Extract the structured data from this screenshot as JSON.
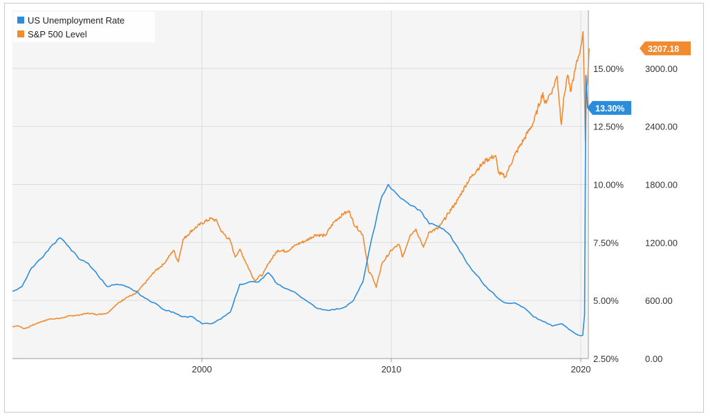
{
  "chart_data": {
    "type": "line",
    "x_range": [
      1990.0,
      2020.4
    ],
    "x_ticks": [
      "2000",
      "2010",
      "2020"
    ],
    "grid": true,
    "legend_position": "top-left",
    "left_axis": {
      "ticks": [
        "2.50%",
        "5.00%",
        "7.50%",
        "10.00%",
        "12.50%",
        "15.00%"
      ],
      "range": [
        2.5,
        17.5
      ]
    },
    "right_axis": {
      "ticks": [
        "0.00",
        "600.00",
        "1200.00",
        "1800.00",
        "2400.00",
        "3000.00"
      ],
      "range": [
        0,
        3600
      ]
    },
    "series": [
      {
        "name": "US Unemployment Rate",
        "color": "#2b8cdc",
        "axis": "left",
        "last_value_label": "13.30%",
        "last_value": 13.3,
        "points": [
          [
            1990.0,
            5.4
          ],
          [
            1990.5,
            5.6
          ],
          [
            1991.0,
            6.4
          ],
          [
            1991.5,
            6.8
          ],
          [
            1992.0,
            7.3
          ],
          [
            1992.5,
            7.7
          ],
          [
            1993.0,
            7.3
          ],
          [
            1993.5,
            6.8
          ],
          [
            1994.0,
            6.6
          ],
          [
            1994.5,
            6.1
          ],
          [
            1995.0,
            5.6
          ],
          [
            1995.5,
            5.7
          ],
          [
            1996.0,
            5.6
          ],
          [
            1996.5,
            5.4
          ],
          [
            1997.0,
            5.1
          ],
          [
            1997.5,
            4.9
          ],
          [
            1998.0,
            4.6
          ],
          [
            1998.5,
            4.5
          ],
          [
            1999.0,
            4.3
          ],
          [
            1999.5,
            4.3
          ],
          [
            2000.0,
            4.0
          ],
          [
            2000.5,
            4.0
          ],
          [
            2001.0,
            4.2
          ],
          [
            2001.5,
            4.5
          ],
          [
            2002.0,
            5.7
          ],
          [
            2002.5,
            5.8
          ],
          [
            2003.0,
            5.8
          ],
          [
            2003.5,
            6.2
          ],
          [
            2004.0,
            5.7
          ],
          [
            2004.5,
            5.5
          ],
          [
            2005.0,
            5.3
          ],
          [
            2005.5,
            5.0
          ],
          [
            2006.0,
            4.7
          ],
          [
            2006.5,
            4.6
          ],
          [
            2007.0,
            4.6
          ],
          [
            2007.5,
            4.7
          ],
          [
            2008.0,
            5.0
          ],
          [
            2008.5,
            5.8
          ],
          [
            2009.0,
            7.8
          ],
          [
            2009.5,
            9.5
          ],
          [
            2009.83,
            10.0
          ],
          [
            2010.0,
            9.8
          ],
          [
            2010.5,
            9.4
          ],
          [
            2011.0,
            9.1
          ],
          [
            2011.5,
            8.9
          ],
          [
            2012.0,
            8.3
          ],
          [
            2012.5,
            8.2
          ],
          [
            2013.0,
            7.9
          ],
          [
            2013.5,
            7.3
          ],
          [
            2014.0,
            6.6
          ],
          [
            2014.5,
            6.1
          ],
          [
            2015.0,
            5.6
          ],
          [
            2015.5,
            5.2
          ],
          [
            2016.0,
            4.9
          ],
          [
            2016.5,
            4.9
          ],
          [
            2017.0,
            4.7
          ],
          [
            2017.5,
            4.3
          ],
          [
            2018.0,
            4.1
          ],
          [
            2018.5,
            3.9
          ],
          [
            2019.0,
            4.0
          ],
          [
            2019.5,
            3.7
          ],
          [
            2019.9,
            3.5
          ],
          [
            2020.1,
            3.5
          ],
          [
            2020.2,
            4.4
          ],
          [
            2020.27,
            14.7
          ],
          [
            2020.36,
            13.3
          ]
        ]
      },
      {
        "name": "S&P 500 Level",
        "color": "#f28a30",
        "axis": "right",
        "last_value_label": "3207.18",
        "last_value": 3207.18,
        "points": [
          [
            1990.0,
            330
          ],
          [
            1990.3,
            340
          ],
          [
            1990.6,
            310
          ],
          [
            1990.8,
            320
          ],
          [
            1991.0,
            340
          ],
          [
            1991.5,
            380
          ],
          [
            1992.0,
            410
          ],
          [
            1992.5,
            415
          ],
          [
            1993.0,
            440
          ],
          [
            1993.5,
            450
          ],
          [
            1994.0,
            470
          ],
          [
            1994.5,
            455
          ],
          [
            1995.0,
            470
          ],
          [
            1995.5,
            560
          ],
          [
            1996.0,
            630
          ],
          [
            1996.5,
            670
          ],
          [
            1997.0,
            780
          ],
          [
            1997.5,
            900
          ],
          [
            1998.0,
            980
          ],
          [
            1998.5,
            1120
          ],
          [
            1998.75,
            1000
          ],
          [
            1999.0,
            1230
          ],
          [
            1999.5,
            1330
          ],
          [
            2000.0,
            1400
          ],
          [
            2000.5,
            1450
          ],
          [
            2000.8,
            1420
          ],
          [
            2001.0,
            1320
          ],
          [
            2001.5,
            1220
          ],
          [
            2001.75,
            1050
          ],
          [
            2002.0,
            1130
          ],
          [
            2002.5,
            920
          ],
          [
            2002.8,
            800
          ],
          [
            2003.0,
            850
          ],
          [
            2003.2,
            860
          ],
          [
            2003.5,
            980
          ],
          [
            2004.0,
            1120
          ],
          [
            2004.5,
            1110
          ],
          [
            2005.0,
            1180
          ],
          [
            2005.5,
            1220
          ],
          [
            2006.0,
            1280
          ],
          [
            2006.5,
            1270
          ],
          [
            2007.0,
            1420
          ],
          [
            2007.5,
            1500
          ],
          [
            2007.8,
            1520
          ],
          [
            2008.0,
            1400
          ],
          [
            2008.5,
            1280
          ],
          [
            2008.8,
            900
          ],
          [
            2009.0,
            850
          ],
          [
            2009.2,
            735
          ],
          [
            2009.5,
            980
          ],
          [
            2010.0,
            1120
          ],
          [
            2010.4,
            1180
          ],
          [
            2010.6,
            1050
          ],
          [
            2011.0,
            1280
          ],
          [
            2011.3,
            1340
          ],
          [
            2011.7,
            1150
          ],
          [
            2012.0,
            1310
          ],
          [
            2012.5,
            1350
          ],
          [
            2013.0,
            1500
          ],
          [
            2013.5,
            1640
          ],
          [
            2014.0,
            1820
          ],
          [
            2014.5,
            1950
          ],
          [
            2015.0,
            2050
          ],
          [
            2015.5,
            2100
          ],
          [
            2015.65,
            1920
          ],
          [
            2016.0,
            1880
          ],
          [
            2016.1,
            1920
          ],
          [
            2016.5,
            2100
          ],
          [
            2017.0,
            2270
          ],
          [
            2017.5,
            2440
          ],
          [
            2018.0,
            2750
          ],
          [
            2018.1,
            2640
          ],
          [
            2018.5,
            2780
          ],
          [
            2018.75,
            2920
          ],
          [
            2018.97,
            2420
          ],
          [
            2019.1,
            2700
          ],
          [
            2019.3,
            2930
          ],
          [
            2019.45,
            2760
          ],
          [
            2019.7,
            2980
          ],
          [
            2020.0,
            3230
          ],
          [
            2020.12,
            3380
          ],
          [
            2020.2,
            2700
          ],
          [
            2020.24,
            2240
          ],
          [
            2020.3,
            2800
          ],
          [
            2020.38,
            2950
          ],
          [
            2020.44,
            3207
          ]
        ]
      }
    ]
  }
}
